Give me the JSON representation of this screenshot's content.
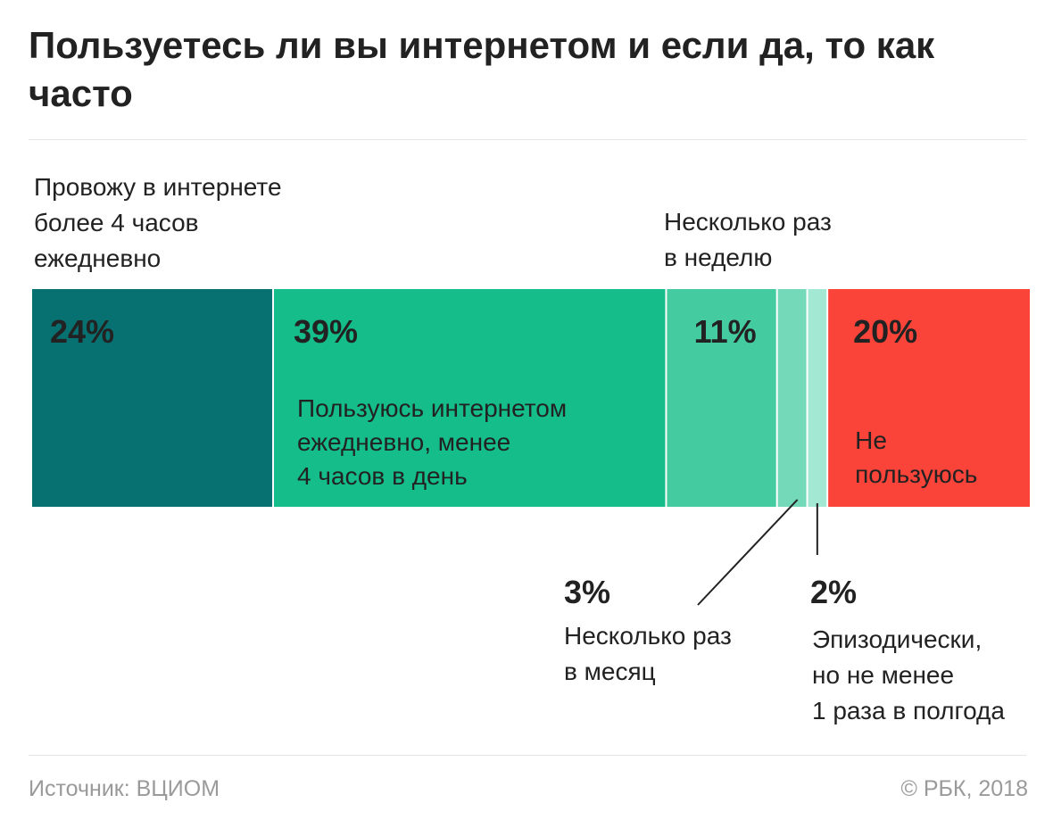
{
  "title": "Пользуетесь ли вы интернетом и если да, то как часто",
  "footer": {
    "source": "Источник: ВЦИОМ",
    "copyright": "© РБК, 2018"
  },
  "chart_data": {
    "type": "bar",
    "orientation": "horizontal-stacked",
    "unit": "%",
    "title": "Пользуетесь ли вы интернетом и если да, то как часто",
    "xlabel": "",
    "ylabel": "",
    "grid": false,
    "legend": "none",
    "series": [
      {
        "value": 24,
        "value_label": "24%",
        "label_lines": [
          "Провожу в интернете",
          "более 4 часов",
          "ежедневно"
        ],
        "color": "#077171"
      },
      {
        "value": 39,
        "value_label": "39%",
        "label_lines": [
          "Пользуюсь интернетом",
          "ежедневно, менее",
          "4 часов в день"
        ],
        "color": "#14bd89"
      },
      {
        "value": 11,
        "value_label": "11%",
        "label_lines": [
          "Несколько раз",
          "в неделю"
        ],
        "color": "#44cb9f"
      },
      {
        "value": 3,
        "value_label": "3%",
        "label_lines": [
          "Несколько раз",
          "в месяц"
        ],
        "color": "#74d9b8"
      },
      {
        "value": 2,
        "value_label": "2%",
        "label_lines": [
          "Эпизодически,",
          "но не менее",
          "1 раза в полгода"
        ],
        "color": "#a3e8d2"
      },
      {
        "value": 20,
        "value_label": "20%",
        "label_lines": [
          "Не",
          "пользуюсь"
        ],
        "color": "#fb4439"
      }
    ]
  }
}
